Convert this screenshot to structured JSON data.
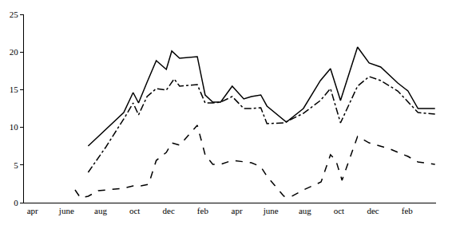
{
  "chart_data": {
    "type": "line",
    "xlim": [
      0,
      24.2
    ],
    "xticks": [
      {
        "value": 0.5,
        "label": "apr"
      },
      {
        "value": 2.5,
        "label": "june"
      },
      {
        "value": 4.5,
        "label": "aug"
      },
      {
        "value": 6.5,
        "label": "oct"
      },
      {
        "value": 8.5,
        "label": "dec"
      },
      {
        "value": 10.5,
        "label": "feb"
      },
      {
        "value": 12.5,
        "label": "apr"
      },
      {
        "value": 14.5,
        "label": "june"
      },
      {
        "value": 16.5,
        "label": "aug"
      },
      {
        "value": 18.5,
        "label": "oct"
      },
      {
        "value": 20.5,
        "label": "dec"
      },
      {
        "value": 22.5,
        "label": "feb"
      }
    ],
    "ylim": [
      0,
      25
    ],
    "yticks": [
      0,
      5,
      10,
      15,
      20,
      25
    ],
    "grid": false,
    "series": [
      {
        "color": "#000000",
        "line_style": "solid",
        "x": [
          3.77,
          5.86,
          6.41,
          6.73,
          7.23,
          7.77,
          8.36,
          8.68,
          9.14,
          10.18,
          10.64,
          11.09,
          11.55,
          12.23,
          12.91,
          13.36,
          13.91,
          14.27,
          15.41,
          16.41,
          17.41,
          18.0,
          18.59,
          19.59,
          20.27,
          20.95,
          21.95,
          22.55,
          23.14,
          24.14
        ],
        "values": [
          7.52,
          11.97,
          14.62,
          13.24,
          16.0,
          18.86,
          17.69,
          20.13,
          19.17,
          19.39,
          14.3,
          13.35,
          13.35,
          15.47,
          13.77,
          14.09,
          14.3,
          12.82,
          10.7,
          12.5,
          16.21,
          17.8,
          13.56,
          20.66,
          18.54,
          18.01,
          15.89,
          14.83,
          12.5,
          12.5
        ]
      },
      {
        "color": "#000000",
        "line_style": "dashdot",
        "x": [
          3.77,
          4.82,
          5.95,
          6.41,
          6.73,
          7.23,
          7.77,
          8.36,
          8.82,
          9.14,
          10.18,
          10.64,
          11.09,
          11.55,
          12.23,
          12.91,
          13.36,
          13.91,
          14.27,
          15.27,
          16.41,
          17.41,
          18.0,
          18.59,
          19.59,
          20.27,
          20.95,
          21.95,
          23.14,
          24.14
        ],
        "values": [
          4.03,
          7.42,
          11.44,
          13.24,
          11.65,
          14.09,
          15.15,
          14.94,
          16.42,
          15.47,
          15.68,
          13.24,
          13.24,
          13.35,
          14.09,
          12.5,
          12.5,
          12.61,
          10.49,
          10.59,
          11.86,
          13.56,
          15.15,
          10.59,
          15.47,
          16.74,
          16.21,
          14.83,
          11.97,
          11.76
        ]
      },
      {
        "color": "#000000",
        "line_style": "dash",
        "x": [
          3.0,
          3.32,
          3.77,
          4.36,
          5.86,
          6.41,
          6.86,
          7.32,
          7.77,
          8.36,
          8.68,
          9.14,
          10.18,
          10.64,
          11.09,
          11.55,
          12.23,
          13.36,
          13.91,
          14.27,
          15.27,
          15.73,
          16.41,
          17.45,
          18.0,
          18.32,
          18.68,
          19.59,
          20.27,
          21.41,
          22.55,
          23.14,
          24.14
        ],
        "values": [
          1.69,
          0.64,
          0.85,
          1.59,
          1.91,
          2.22,
          2.22,
          2.44,
          5.61,
          6.67,
          7.94,
          7.63,
          10.28,
          6.36,
          5.08,
          5.08,
          5.61,
          5.3,
          4.77,
          3.5,
          0.85,
          0.85,
          1.69,
          2.75,
          6.36,
          5.61,
          2.97,
          8.79,
          7.94,
          7.2,
          6.14,
          5.4,
          5.08
        ]
      }
    ]
  }
}
